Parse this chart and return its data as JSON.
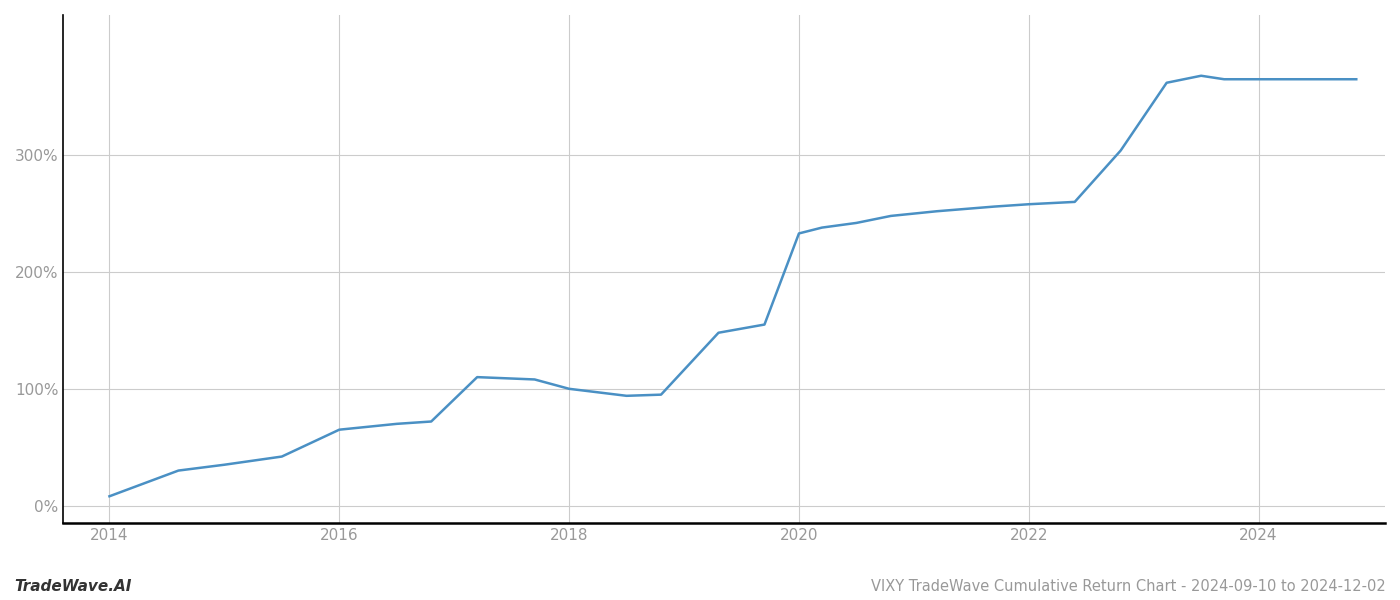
{
  "x_years": [
    2014.0,
    2014.6,
    2015.0,
    2015.5,
    2016.0,
    2016.5,
    2016.8,
    2017.2,
    2017.7,
    2018.0,
    2018.5,
    2018.8,
    2019.3,
    2019.7,
    2020.0,
    2020.2,
    2020.5,
    2020.8,
    2021.2,
    2021.7,
    2022.0,
    2022.4,
    2022.8,
    2023.2,
    2023.5,
    2023.7,
    2024.0,
    2024.5,
    2024.85
  ],
  "y_values": [
    8,
    30,
    35,
    42,
    65,
    70,
    72,
    110,
    108,
    100,
    94,
    95,
    148,
    155,
    233,
    238,
    242,
    248,
    252,
    256,
    258,
    260,
    304,
    362,
    368,
    365,
    365,
    365,
    365
  ],
  "line_color": "#4a90c4",
  "line_width": 1.8,
  "title": "VIXY TradeWave Cumulative Return Chart - 2024-09-10 to 2024-12-02",
  "watermark": "TradeWave.AI",
  "xlabel": "",
  "ylabel": "",
  "xlim": [
    2013.6,
    2025.1
  ],
  "ylim": [
    -15,
    420
  ],
  "yticks": [
    0,
    100,
    200,
    300
  ],
  "xticks": [
    2014,
    2016,
    2018,
    2020,
    2022,
    2024
  ],
  "grid_color": "#cccccc",
  "grid_linewidth": 0.8,
  "background_color": "#ffffff",
  "tick_color": "#999999",
  "title_fontsize": 10.5,
  "watermark_fontsize": 11,
  "spine_color": "#000000"
}
